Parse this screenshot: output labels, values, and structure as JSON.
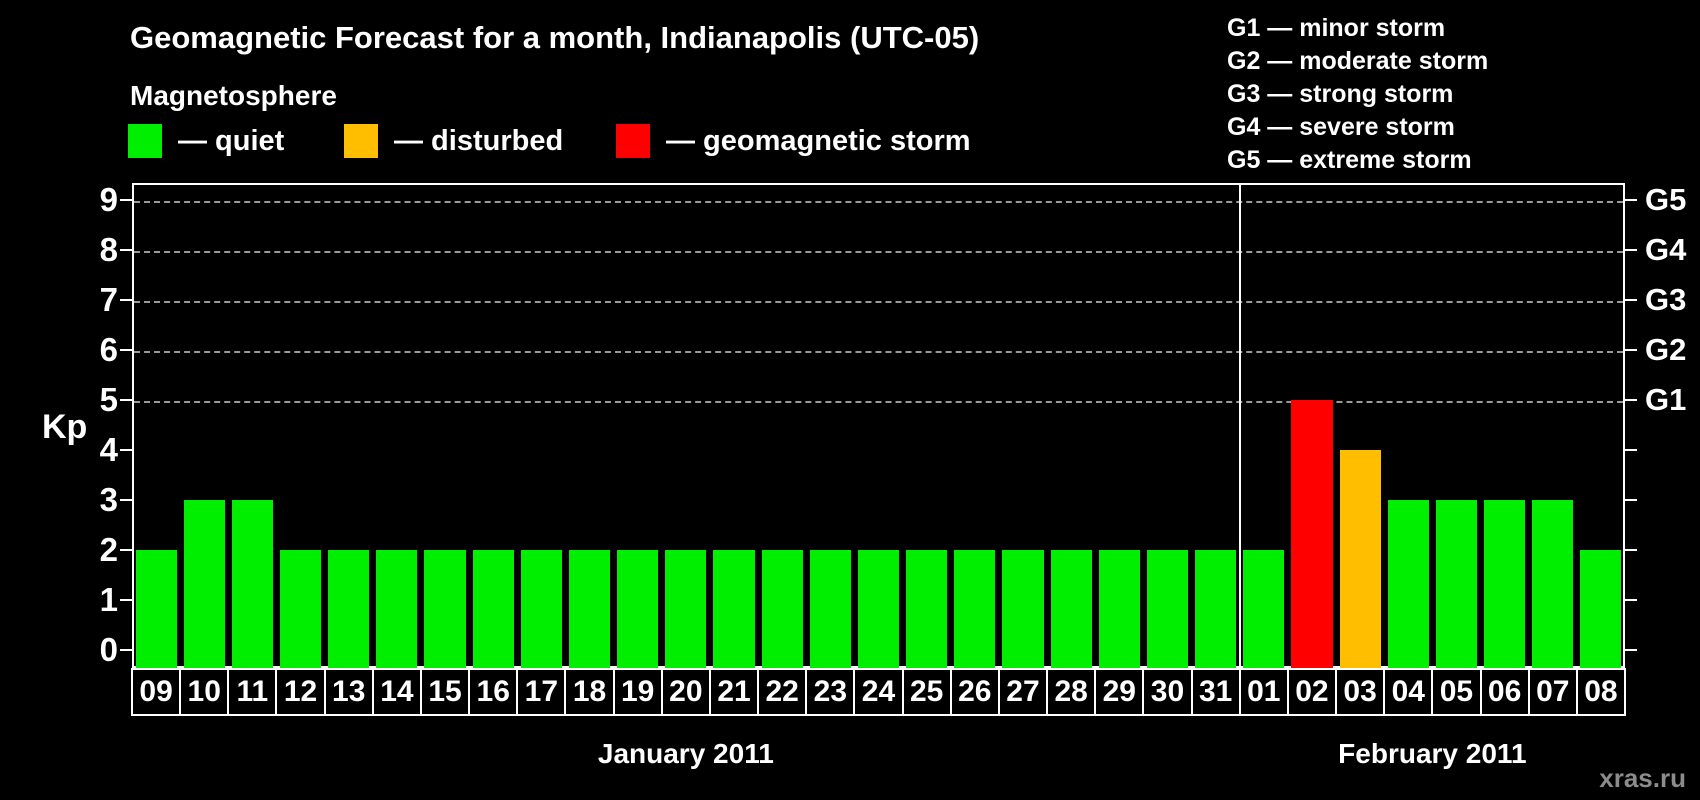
{
  "title": "Geomagnetic Forecast for a month, Indianapolis (UTC-05)",
  "subtitle": "Magnetosphere",
  "legend": [
    {
      "key": "quiet",
      "label": "— quiet",
      "color": "#00ee00"
    },
    {
      "key": "disturbed",
      "label": "— disturbed",
      "color": "#ffbf00"
    },
    {
      "key": "storm",
      "label": "— geomagnetic storm",
      "color": "#ff0000"
    }
  ],
  "storm_scale": [
    "G1 — minor storm",
    "G2 — moderate storm",
    "G3 — strong storm",
    "G4 — severe storm",
    "G5 — extreme storm"
  ],
  "watermark": "xras.ru",
  "chart_data": {
    "type": "bar",
    "title": "Geomagnetic Forecast for a month, Indianapolis (UTC-05)",
    "ylabel": "Kp",
    "ylim": [
      0,
      9
    ],
    "yticks": [
      0,
      1,
      2,
      3,
      4,
      5,
      6,
      7,
      8,
      9
    ],
    "grid_levels": [
      5,
      6,
      7,
      8,
      9
    ],
    "right_axis_labels": {
      "5": "G1",
      "6": "G2",
      "7": "G3",
      "8": "G4",
      "9": "G5"
    },
    "legend_position": "top-left",
    "colors": {
      "quiet": "#00ee00",
      "disturbed": "#ffbf00",
      "storm": "#ff0000"
    },
    "color_rule": {
      "quiet_max": 3,
      "disturbed": 4,
      "storm_min": 5
    },
    "months": [
      {
        "label": "January 2011",
        "days": [
          "09",
          "10",
          "11",
          "12",
          "13",
          "14",
          "15",
          "16",
          "17",
          "18",
          "19",
          "20",
          "21",
          "22",
          "23",
          "24",
          "25",
          "26",
          "27",
          "28",
          "29",
          "30",
          "31"
        ],
        "values": [
          2,
          3,
          3,
          2,
          2,
          2,
          2,
          2,
          2,
          2,
          2,
          2,
          2,
          2,
          2,
          2,
          2,
          2,
          2,
          2,
          2,
          2,
          2
        ]
      },
      {
        "label": "February 2011",
        "days": [
          "01",
          "02",
          "03",
          "04",
          "05",
          "06",
          "07",
          "08"
        ],
        "values": [
          2,
          5,
          4,
          3,
          3,
          3,
          3,
          2
        ]
      }
    ]
  }
}
